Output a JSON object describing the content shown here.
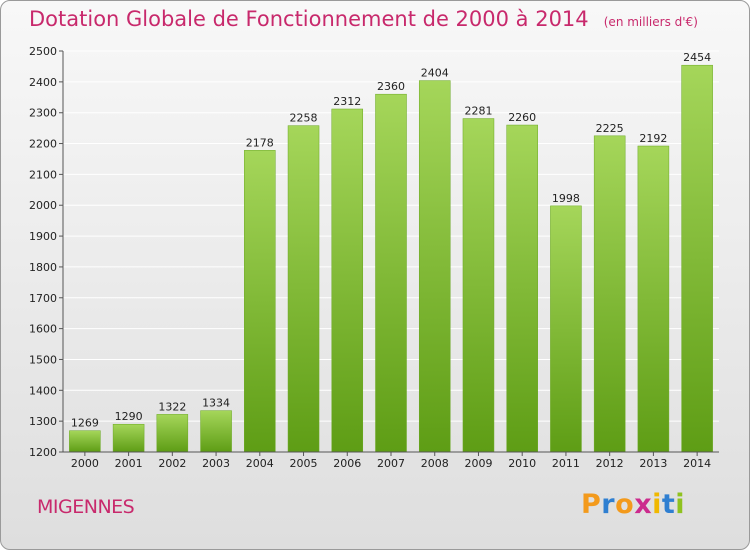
{
  "title": "Dotation Globale de Fonctionnement de 2000 à 2014",
  "subtitle": "(en milliers d'€)",
  "town": "MIGENNES",
  "logo": {
    "text": "Proxiti",
    "letter_colors": [
      "#f39a1c",
      "#2f7fd1",
      "#f39a1c",
      "#cc2b8d",
      "#f0b800",
      "#2f7fd1",
      "#8fc21f"
    ]
  },
  "colors": {
    "title": "#c8296c",
    "bar_light": "#a5d65a",
    "bar_dark": "#5e9d15",
    "grid": "#ffffff",
    "text": "#222222"
  },
  "chart_data": {
    "type": "bar",
    "categories": [
      "2000",
      "2001",
      "2002",
      "2003",
      "2004",
      "2005",
      "2006",
      "2007",
      "2008",
      "2009",
      "2010",
      "2011",
      "2012",
      "2013",
      "2014"
    ],
    "values": [
      1269,
      1290,
      1322,
      1334,
      2178,
      2258,
      2312,
      2360,
      2404,
      2281,
      2260,
      1998,
      2225,
      2192,
      2454
    ],
    "ylim": [
      1200,
      2500
    ],
    "yticks": [
      1200,
      1300,
      1400,
      1500,
      1600,
      1700,
      1800,
      1900,
      2000,
      2100,
      2200,
      2300,
      2400,
      2500
    ],
    "grid": true,
    "data_labels": true
  }
}
